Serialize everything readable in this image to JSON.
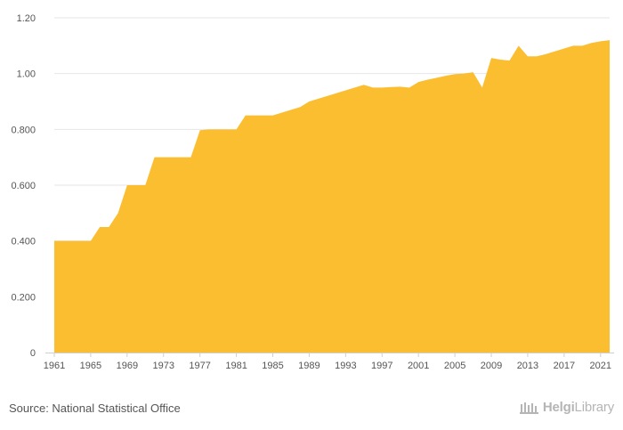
{
  "chart_data": {
    "type": "area",
    "color": "#FBBE30",
    "x": [
      1961,
      1962,
      1963,
      1964,
      1965,
      1966,
      1967,
      1968,
      1969,
      1970,
      1971,
      1972,
      1973,
      1974,
      1975,
      1976,
      1977,
      1978,
      1979,
      1980,
      1981,
      1982,
      1983,
      1984,
      1985,
      1986,
      1987,
      1988,
      1989,
      1990,
      1991,
      1992,
      1993,
      1994,
      1995,
      1996,
      1997,
      1998,
      1999,
      2000,
      2001,
      2002,
      2003,
      2004,
      2005,
      2006,
      2007,
      2008,
      2009,
      2010,
      2011,
      2012,
      2013,
      2014,
      2015,
      2016,
      2017,
      2018,
      2019,
      2020,
      2021,
      2022
    ],
    "values": [
      0.4,
      0.4,
      0.4,
      0.4,
      0.4,
      0.45,
      0.45,
      0.5,
      0.6,
      0.6,
      0.6,
      0.7,
      0.7,
      0.7,
      0.7,
      0.7,
      0.797,
      0.8,
      0.8,
      0.8,
      0.8,
      0.85,
      0.85,
      0.85,
      0.85,
      0.86,
      0.87,
      0.88,
      0.9,
      0.91,
      0.92,
      0.93,
      0.94,
      0.95,
      0.96,
      0.95,
      0.95,
      0.952,
      0.953,
      0.95,
      0.97,
      0.978,
      0.985,
      0.992,
      0.998,
      1.0,
      1.005,
      0.95,
      1.056,
      1.05,
      1.047,
      1.1,
      1.062,
      1.062,
      1.07,
      1.08,
      1.09,
      1.1,
      1.1,
      1.11,
      1.116,
      1.12
    ],
    "x_ticks": [
      "1961",
      "1965",
      "1969",
      "1973",
      "1977",
      "1981",
      "1985",
      "1989",
      "1993",
      "1997",
      "2001",
      "2005",
      "2009",
      "2013",
      "2017",
      "2021"
    ],
    "y_ticks": [
      {
        "value": 0,
        "label": "0"
      },
      {
        "value": 0.2,
        "label": "0.200"
      },
      {
        "value": 0.4,
        "label": "0.400"
      },
      {
        "value": 0.6,
        "label": "0.600"
      },
      {
        "value": 0.8,
        "label": "0.800"
      },
      {
        "value": 1.0,
        "label": "1.00"
      },
      {
        "value": 1.2,
        "label": "1.20"
      }
    ],
    "xlim": [
      1961,
      2022
    ],
    "ylim": [
      0,
      1.2
    ],
    "grid": true
  },
  "footer": {
    "source": "Source: National Statistical Office",
    "brand_bold": "Helgi",
    "brand_light": "Library",
    "brand_color": "#B5B5B5"
  }
}
